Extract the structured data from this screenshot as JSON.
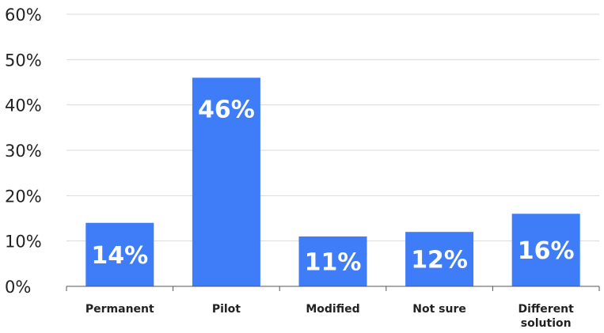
{
  "chart_data": {
    "type": "bar",
    "title": "",
    "xlabel": "",
    "ylabel": "",
    "categories": [
      [
        "Permanent"
      ],
      [
        "Pilot"
      ],
      [
        "Modified"
      ],
      [
        "Not sure"
      ],
      [
        "Different",
        "solution"
      ]
    ],
    "values": [
      14,
      46,
      11,
      12,
      16
    ],
    "data_labels": [
      "14%",
      "46%",
      "11%",
      "12%",
      "16%"
    ],
    "ylim": [
      0,
      60
    ],
    "yticks": [
      0,
      10,
      20,
      30,
      40,
      50,
      60
    ],
    "ytick_labels": [
      "0%",
      "10%",
      "20%",
      "30%",
      "40%",
      "50%",
      "60%"
    ],
    "grid": true,
    "legend": "none",
    "colors": {
      "bar": "#3f7cf7",
      "grid": "#d9d9d9",
      "axis": "#555555",
      "text": "#222222",
      "label": "#ffffff"
    }
  }
}
